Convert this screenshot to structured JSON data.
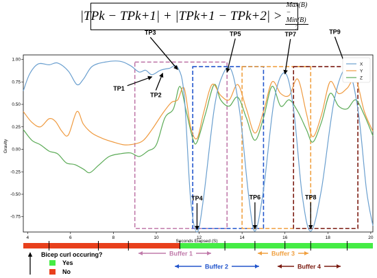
{
  "formula": {
    "lhs": "|TPk − TPk+1| + |TPk+1 − TPk+2| >",
    "numerator": "Max(B) − Min(B)",
    "denominator": "2"
  },
  "chart_data": {
    "type": "line",
    "xlabel": "Seconds Elapsed (S)",
    "ylabel": "Gravity",
    "xlim": [
      3.8,
      20.1
    ],
    "ylim": [
      -0.92,
      1.05
    ],
    "x_ticks": [
      "4",
      "6",
      "8",
      "10",
      "12",
      "14",
      "16",
      "18",
      "20"
    ],
    "y_ticks": [
      "1.00",
      "0.75",
      "0.50",
      "0.25",
      "0.00",
      "-0.25",
      "-0.50",
      "-0.75"
    ],
    "grid": false,
    "legend_position": "top-right",
    "series": [
      {
        "name": "X",
        "color": "#6a9fcf",
        "points": [
          [
            3.8,
            0.65
          ],
          [
            4.1,
            0.84
          ],
          [
            4.5,
            0.95
          ],
          [
            5.0,
            0.94
          ],
          [
            5.4,
            0.96
          ],
          [
            5.9,
            0.87
          ],
          [
            6.3,
            0.72
          ],
          [
            6.6,
            0.78
          ],
          [
            7.0,
            0.92
          ],
          [
            7.6,
            0.97
          ],
          [
            8.3,
            0.98
          ],
          [
            8.8,
            0.93
          ],
          [
            9.2,
            0.86
          ],
          [
            9.5,
            0.88
          ],
          [
            9.8,
            0.83
          ],
          [
            10.2,
            0.88
          ],
          [
            10.6,
            0.9
          ],
          [
            11.0,
            0.91
          ],
          [
            11.3,
            0.6
          ],
          [
            11.6,
            -0.55
          ],
          [
            11.9,
            -0.92
          ],
          [
            12.2,
            -0.55
          ],
          [
            12.7,
            0.45
          ],
          [
            13.1,
            0.83
          ],
          [
            13.5,
            0.88
          ],
          [
            13.9,
            0.4
          ],
          [
            14.3,
            -0.5
          ],
          [
            14.6,
            -0.91
          ],
          [
            15.0,
            -0.45
          ],
          [
            15.5,
            0.55
          ],
          [
            16.0,
            0.85
          ],
          [
            16.4,
            0.45
          ],
          [
            16.8,
            -0.5
          ],
          [
            17.2,
            -0.91
          ],
          [
            17.7,
            -0.45
          ],
          [
            18.3,
            0.55
          ],
          [
            18.9,
            0.9
          ],
          [
            19.4,
            0.45
          ],
          [
            19.8,
            -0.45
          ],
          [
            20.1,
            -0.85
          ]
        ]
      },
      {
        "name": "Y",
        "color": "#ef9a3f",
        "points": [
          [
            3.8,
            0.42
          ],
          [
            4.2,
            0.3
          ],
          [
            4.6,
            0.25
          ],
          [
            5.0,
            0.34
          ],
          [
            5.3,
            0.31
          ],
          [
            5.6,
            0.2
          ],
          [
            5.9,
            0.16
          ],
          [
            6.3,
            0.42
          ],
          [
            6.6,
            0.28
          ],
          [
            7.0,
            0.18
          ],
          [
            7.5,
            0.12
          ],
          [
            8.0,
            0.08
          ],
          [
            8.5,
            0.05
          ],
          [
            9.0,
            0.06
          ],
          [
            9.4,
            0.1
          ],
          [
            9.8,
            0.22
          ],
          [
            10.3,
            0.4
          ],
          [
            10.7,
            0.52
          ],
          [
            11.0,
            0.55
          ],
          [
            11.3,
            0.68
          ],
          [
            11.6,
            0.25
          ],
          [
            11.9,
            0.12
          ],
          [
            12.2,
            0.4
          ],
          [
            12.6,
            0.72
          ],
          [
            13.0,
            0.6
          ],
          [
            13.4,
            0.55
          ],
          [
            13.8,
            0.72
          ],
          [
            14.2,
            0.45
          ],
          [
            14.6,
            0.18
          ],
          [
            15.0,
            0.42
          ],
          [
            15.4,
            0.75
          ],
          [
            15.8,
            0.62
          ],
          [
            16.2,
            0.6
          ],
          [
            16.6,
            0.78
          ],
          [
            17.0,
            0.4
          ],
          [
            17.3,
            0.14
          ],
          [
            17.7,
            0.38
          ],
          [
            18.1,
            0.75
          ],
          [
            18.5,
            0.62
          ],
          [
            18.9,
            0.68
          ],
          [
            19.3,
            0.78
          ],
          [
            19.7,
            0.42
          ],
          [
            20.1,
            0.2
          ]
        ]
      },
      {
        "name": "Z",
        "color": "#5aaa55",
        "points": [
          [
            3.8,
            0.22
          ],
          [
            4.2,
            0.1
          ],
          [
            4.6,
            0.05
          ],
          [
            5.0,
            -0.02
          ],
          [
            5.4,
            -0.05
          ],
          [
            5.8,
            -0.15
          ],
          [
            6.2,
            -0.17
          ],
          [
            6.6,
            -0.22
          ],
          [
            6.9,
            -0.26
          ],
          [
            7.3,
            -0.18
          ],
          [
            7.8,
            -0.08
          ],
          [
            8.3,
            -0.05
          ],
          [
            8.8,
            -0.04
          ],
          [
            9.2,
            -0.08
          ],
          [
            9.6,
            -0.02
          ],
          [
            10.0,
            0.05
          ],
          [
            10.4,
            0.35
          ],
          [
            10.8,
            0.45
          ],
          [
            11.1,
            0.7
          ],
          [
            11.4,
            0.42
          ],
          [
            11.7,
            0.12
          ],
          [
            11.9,
            0.08
          ],
          [
            12.3,
            0.4
          ],
          [
            12.7,
            0.72
          ],
          [
            13.0,
            0.55
          ],
          [
            13.4,
            0.48
          ],
          [
            13.8,
            0.58
          ],
          [
            14.2,
            0.35
          ],
          [
            14.6,
            0.1
          ],
          [
            15.0,
            0.35
          ],
          [
            15.4,
            0.7
          ],
          [
            15.8,
            0.48
          ],
          [
            16.2,
            0.55
          ],
          [
            16.6,
            0.42
          ],
          [
            17.0,
            0.22
          ],
          [
            17.3,
            0.08
          ],
          [
            17.7,
            0.3
          ],
          [
            18.1,
            0.62
          ],
          [
            18.5,
            0.48
          ],
          [
            18.9,
            0.45
          ],
          [
            19.3,
            0.55
          ],
          [
            19.7,
            0.38
          ],
          [
            20.1,
            0.15
          ]
        ]
      }
    ],
    "buffers": [
      {
        "label": "Buffer 1",
        "x": [
          9.0,
          13.3
        ],
        "y": [
          -0.88,
          0.97
        ],
        "color": "#c07aaa"
      },
      {
        "label": "Buffer 2",
        "x": [
          11.7,
          15.0
        ],
        "y": [
          -0.88,
          0.92
        ],
        "color": "#2255cc"
      },
      {
        "label": "Buffer 3",
        "x": [
          14.0,
          17.2
        ],
        "y": [
          -0.88,
          0.92
        ],
        "color": "#f0a040"
      },
      {
        "label": "Buffer 4",
        "x": [
          16.4,
          19.4
        ],
        "y": [
          -0.88,
          0.92
        ],
        "color": "#7a1a10"
      }
    ],
    "turning_points": [
      {
        "label": "TP1",
        "x": 9.8,
        "y": 0.83
      },
      {
        "label": "TP2",
        "x": 10.3,
        "y": 0.87
      },
      {
        "label": "TP3",
        "x": 11.0,
        "y": 0.91
      },
      {
        "label": "TP4",
        "x": 11.9,
        "y": -0.92
      },
      {
        "label": "TP5",
        "x": 13.3,
        "y": 0.88
      },
      {
        "label": "TP6",
        "x": 14.6,
        "y": -0.91
      },
      {
        "label": "TP7",
        "x": 16.0,
        "y": 0.86
      },
      {
        "label": "TP8",
        "x": 17.2,
        "y": -0.91
      },
      {
        "label": "TP9",
        "x": 18.9,
        "y": 0.9
      }
    ],
    "activity_bar": {
      "segments": [
        {
          "x": [
            3.8,
            11.1
          ],
          "state": "No"
        },
        {
          "x": [
            11.1,
            20.1
          ],
          "state": "Yes"
        }
      ],
      "ticks": [
        5.0,
        7.3,
        8.7,
        11.1,
        13.2,
        14.6,
        16.0,
        17.2,
        18.9
      ]
    },
    "legend_title": "Bicep curl occuring?",
    "legend_items": [
      {
        "label": "Yes",
        "color": "#45ec45"
      },
      {
        "label": "No",
        "color": "#e8401c"
      }
    ]
  }
}
